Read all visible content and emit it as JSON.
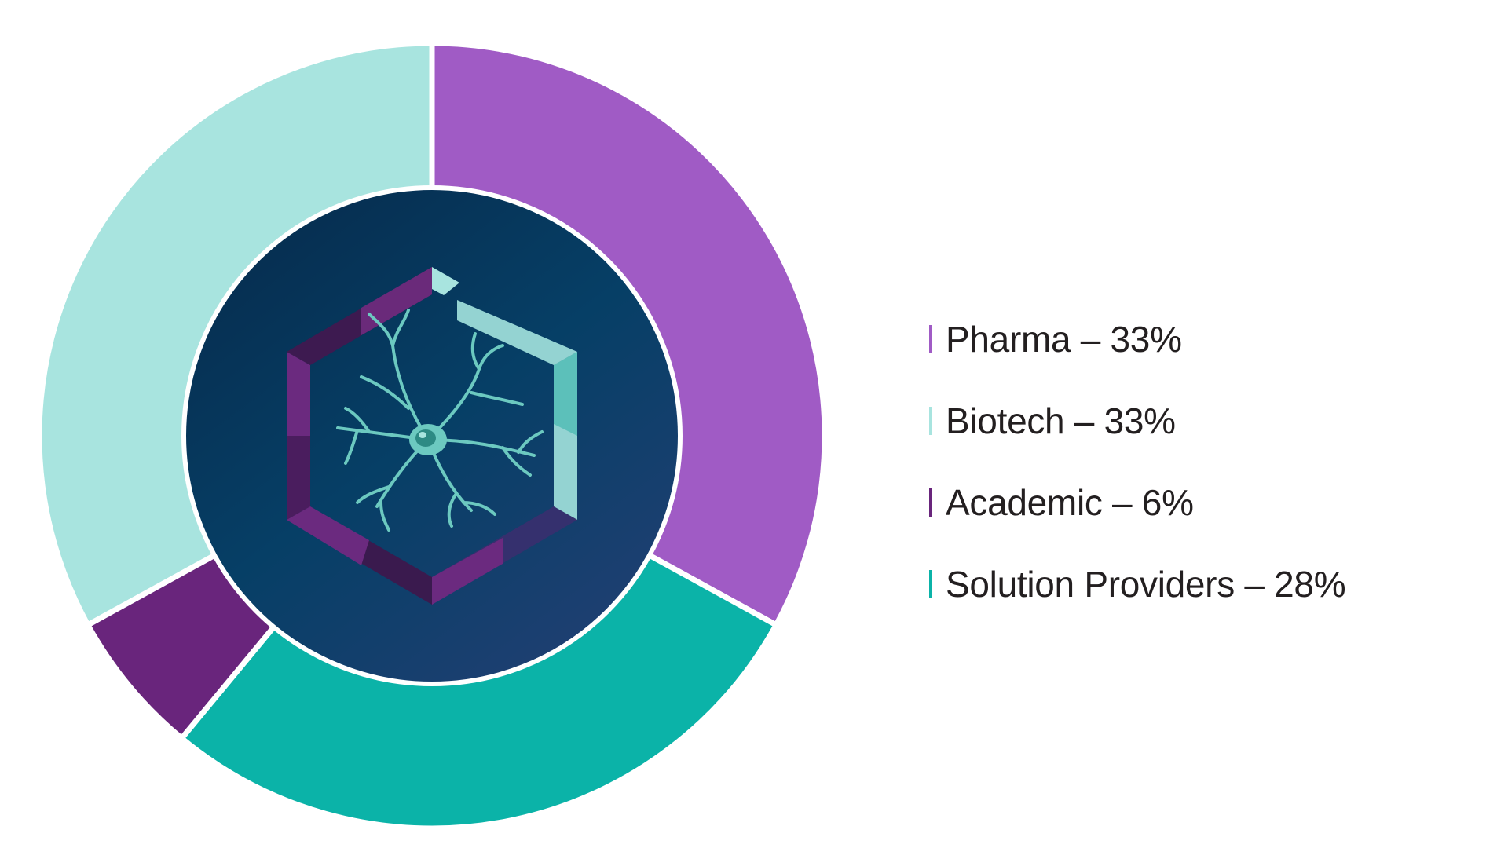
{
  "chart_data": {
    "type": "pie",
    "variant": "donut",
    "start_angle_deg": 0,
    "direction": "clockwise",
    "segments": [
      {
        "label": "Pharma",
        "value": 33,
        "color": "#a05bc5"
      },
      {
        "label": "Solution Providers",
        "value": 28,
        "color": "#0bb3a8"
      },
      {
        "label": "Academic",
        "value": 6,
        "color": "#69257c"
      },
      {
        "label": "Biotech",
        "value": 33,
        "color": "#a8e4df"
      }
    ],
    "legend": {
      "placement": "right",
      "items": [
        {
          "text": "Pharma – 33%",
          "color": "#a05bc5"
        },
        {
          "text": "Biotech – 33%",
          "color": "#a8e4df"
        },
        {
          "text": "Academic – 6%",
          "color": "#69257c"
        },
        {
          "text": "Solution Providers – 28%",
          "color": "#0bb3a8"
        }
      ]
    },
    "center_emblem": "neuron-hexagon-icon"
  }
}
